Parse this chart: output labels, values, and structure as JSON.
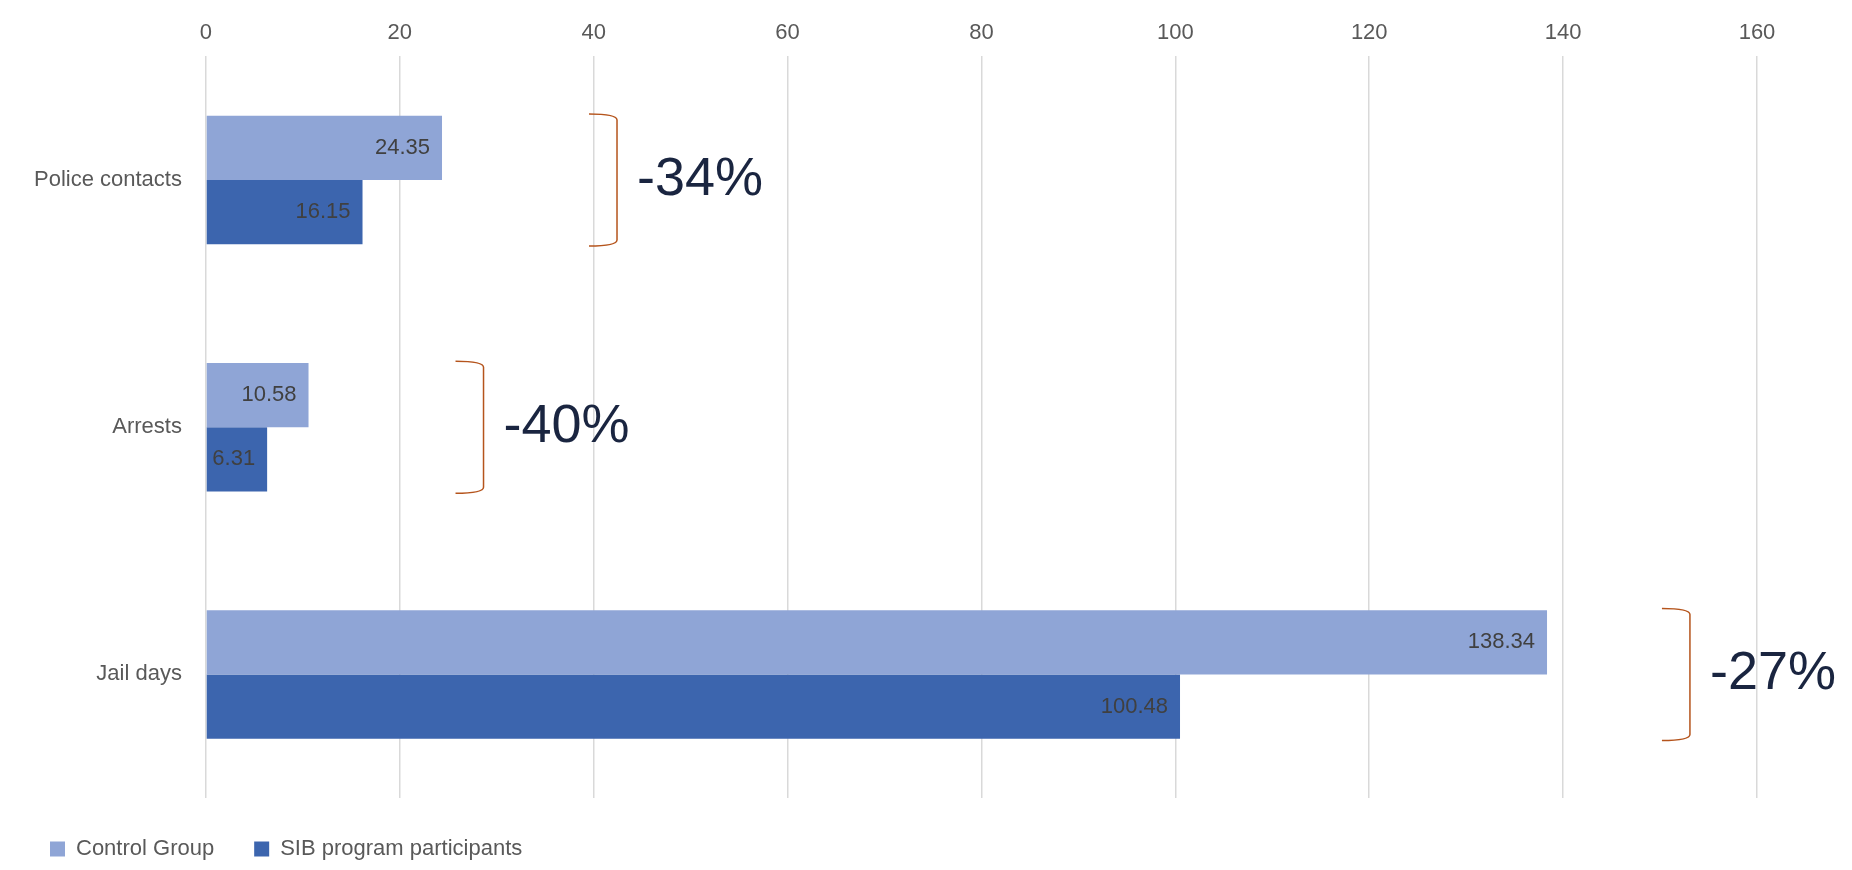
{
  "chart_data": {
    "type": "bar",
    "orientation": "horizontal",
    "categories": [
      "Police contacts",
      "Arrests",
      "Jail days"
    ],
    "series": [
      {
        "name": "Control Group",
        "color": "#8fa5d6",
        "values": [
          24.35,
          10.58,
          138.34
        ]
      },
      {
        "name": "SIB program participants",
        "color": "#3c65ae",
        "values": [
          16.15,
          6.31,
          100.48
        ]
      }
    ],
    "xlim": [
      0,
      160
    ],
    "xticks": [
      0,
      20,
      40,
      60,
      80,
      100,
      120,
      140,
      160
    ],
    "grid": "x",
    "legend": "bottom",
    "data_labels": true,
    "annotations": [
      "-34%",
      "-40%",
      "-27%"
    ]
  }
}
